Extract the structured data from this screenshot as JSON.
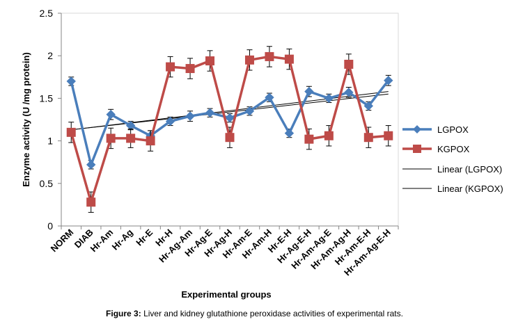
{
  "caption": {
    "label": "Figure 3:",
    "text": "Liver and kidney glutathione peroxidase activities of experimental rats."
  },
  "chart_data": {
    "type": "line",
    "categories": [
      "NORM",
      "DIAB",
      "Hr-Am",
      "Hr-Ag",
      "Hr-E",
      "Hr-H",
      "Hr-Ag-Am",
      "Hr-Ag-E",
      "Hr-Ag-H",
      "Hr-Am-E",
      "Hr-Am-H",
      "Hr-E-H",
      "Hr-Ag-E-H",
      "Hr-Am-Ag-E",
      "Hr-Am-Ag-H",
      "Hr-Am-E-H",
      "Hr-Am-Ag-E-H"
    ],
    "xlabel": "Experimental groups",
    "ylabel": "Enzyme activity (U /mg protein)",
    "ylim": [
      0,
      2.5
    ],
    "yticks": [
      "0",
      "0.5",
      "1",
      "1.5",
      "2",
      "2.5"
    ],
    "grid": false,
    "legend_position": "right",
    "series": [
      {
        "name": "LGPOX",
        "color": "#4a7ebb",
        "marker": "diamond",
        "values": [
          1.7,
          0.72,
          1.31,
          1.18,
          1.06,
          1.23,
          1.29,
          1.33,
          1.27,
          1.35,
          1.51,
          1.09,
          1.58,
          1.5,
          1.57,
          1.41,
          1.71
        ],
        "errors": [
          0.05,
          0.05,
          0.06,
          0.05,
          0.06,
          0.05,
          0.06,
          0.05,
          0.05,
          0.05,
          0.05,
          0.05,
          0.06,
          0.05,
          0.06,
          0.05,
          0.06
        ]
      },
      {
        "name": "KGPOX",
        "color": "#be4b48",
        "marker": "square",
        "values": [
          1.1,
          0.28,
          1.03,
          1.03,
          1.0,
          1.87,
          1.85,
          1.94,
          1.04,
          1.95,
          1.99,
          1.96,
          1.02,
          1.06,
          1.9,
          1.04,
          1.06
        ],
        "errors": [
          0.12,
          0.12,
          0.12,
          0.11,
          0.12,
          0.12,
          0.12,
          0.12,
          0.12,
          0.12,
          0.12,
          0.12,
          0.12,
          0.12,
          0.12,
          0.12,
          0.12
        ]
      }
    ],
    "trendlines": [
      {
        "name": "Linear (LGPOX)",
        "color": "#000000",
        "start": 1.13,
        "end": 1.58
      },
      {
        "name": "Linear (KGPOX)",
        "color": "#000000",
        "start": 1.13,
        "end": 1.55
      }
    ]
  }
}
